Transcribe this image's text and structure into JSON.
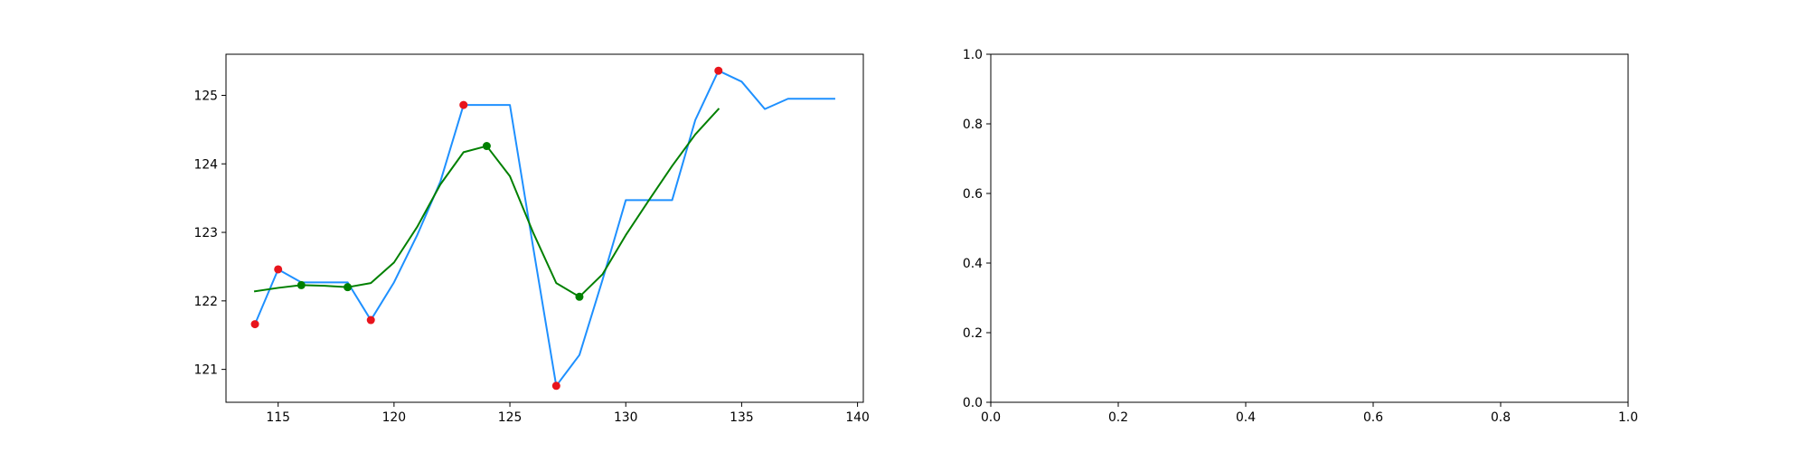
{
  "chart_data": [
    {
      "type": "line",
      "title": "",
      "xlabel": "",
      "ylabel": "",
      "xlim": [
        112.75,
        140.25
      ],
      "ylim": [
        120.52,
        125.6
      ],
      "xticks": [
        115,
        120,
        125,
        130,
        135,
        140
      ],
      "yticks": [
        121,
        122,
        123,
        124,
        125
      ],
      "grid": false,
      "legend": "none",
      "series": [
        {
          "color": "#1e90ff",
          "x": [
            114,
            115,
            116,
            117,
            118,
            119,
            120,
            121,
            122,
            123,
            124,
            125,
            126,
            127,
            128,
            129,
            130,
            131,
            132,
            133,
            134,
            135,
            136,
            137,
            138,
            139
          ],
          "y": [
            121.66,
            122.46,
            122.27,
            122.27,
            122.27,
            121.72,
            122.27,
            122.96,
            123.74,
            124.86,
            124.86,
            124.86,
            122.79,
            120.76,
            121.21,
            122.31,
            123.47,
            123.47,
            123.47,
            124.64,
            125.36,
            125.2,
            124.8,
            124.95,
            124.95,
            124.95
          ]
        },
        {
          "color": "#008000",
          "x": [
            114,
            115,
            116,
            117,
            118,
            119,
            120,
            121,
            122,
            123,
            124,
            125,
            126,
            127,
            128,
            129,
            130,
            131,
            132,
            133,
            134
          ],
          "y": [
            122.14,
            122.19,
            122.23,
            122.22,
            122.2,
            122.26,
            122.56,
            123.08,
            123.7,
            124.17,
            124.26,
            123.82,
            123.0,
            122.26,
            122.06,
            122.39,
            122.96,
            123.47,
            123.97,
            124.43,
            124.8
          ]
        }
      ],
      "markers": [
        {
          "color": "#e8141c",
          "points": [
            [
              114,
              121.66
            ],
            [
              115,
              122.46
            ],
            [
              119,
              121.72
            ],
            [
              123,
              124.86
            ],
            [
              127,
              120.76
            ],
            [
              134,
              125.36
            ]
          ]
        },
        {
          "color": "#008000",
          "points": [
            [
              116,
              122.23
            ],
            [
              118,
              122.2
            ],
            [
              124,
              124.26
            ],
            [
              128,
              122.06
            ]
          ]
        }
      ]
    },
    {
      "type": "line",
      "title": "",
      "xlabel": "",
      "ylabel": "",
      "xlim": [
        0.0,
        1.0
      ],
      "ylim": [
        0.0,
        1.0
      ],
      "xticks": [
        0.0,
        0.2,
        0.4,
        0.6,
        0.8,
        1.0
      ],
      "yticks": [
        0.0,
        0.2,
        0.4,
        0.6,
        0.8,
        1.0
      ],
      "xtick_labels": [
        "0.0",
        "0.2",
        "0.4",
        "0.6",
        "0.8",
        "1.0"
      ],
      "ytick_labels": [
        "0.0",
        "0.2",
        "0.4",
        "0.6",
        "0.8",
        "1.0"
      ],
      "grid": false,
      "legend": "none",
      "series": [],
      "markers": []
    }
  ]
}
